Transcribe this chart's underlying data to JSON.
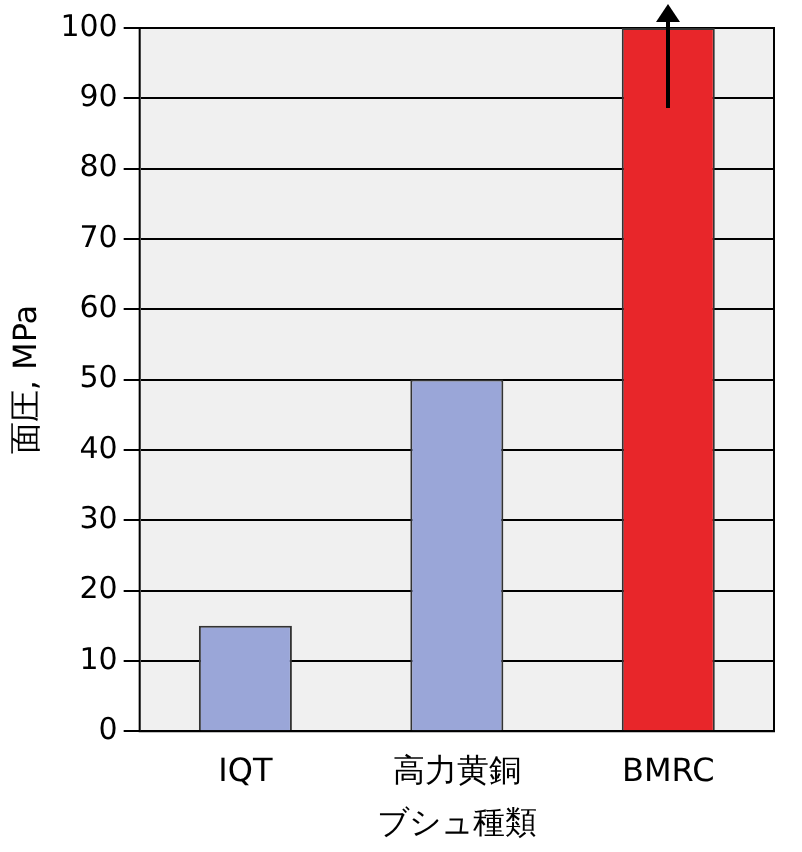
{
  "chart_data": {
    "type": "bar",
    "xlabel": "ブシュ種類",
    "ylabel": "面圧, MPa",
    "categories": [
      "IQT",
      "高力黄銅",
      "BMRC"
    ],
    "values": [
      15,
      50,
      100
    ],
    "colors": [
      "#9aa6d8",
      "#9aa6d8",
      "#e8262a"
    ],
    "ylim": [
      0,
      100
    ],
    "yticks": [
      0,
      10,
      20,
      30,
      40,
      50,
      60,
      70,
      80,
      90,
      100
    ],
    "grid": "y",
    "legend": false
  }
}
